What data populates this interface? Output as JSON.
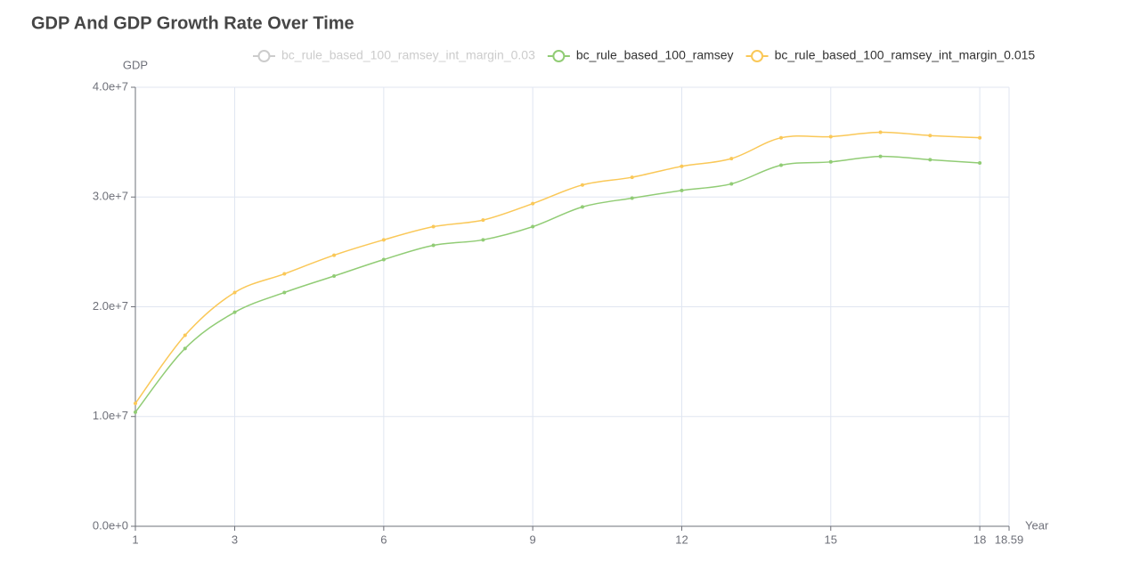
{
  "chart_data": {
    "type": "line",
    "title": "GDP And GDP Growth Rate Over Time",
    "x_label": "Year",
    "y_label": "GDP",
    "x": [
      1,
      2,
      3,
      4,
      5,
      6,
      7,
      8,
      9,
      10,
      11,
      12,
      13,
      14,
      15,
      16,
      17,
      18
    ],
    "series": [
      {
        "name": "bc_rule_based_100_ramsey_int_margin_0.03",
        "color": "#cccccc",
        "hidden": true
      },
      {
        "name": "bc_rule_based_100_ramsey",
        "color": "#91cc75",
        "values": [
          10400000,
          16200000,
          19500000,
          21300000,
          22800000,
          24300000,
          25600000,
          26100000,
          27300000,
          29100000,
          29900000,
          30600000,
          31200000,
          32900000,
          33200000,
          33700000,
          33400000,
          33100000
        ]
      },
      {
        "name": "bc_rule_based_100_ramsey_int_margin_0.015",
        "color": "#fac858",
        "values": [
          11200000,
          17400000,
          21300000,
          23000000,
          24700000,
          26100000,
          27300000,
          27900000,
          29400000,
          31100000,
          31800000,
          32800000,
          33500000,
          35400000,
          35500000,
          35900000,
          35600000,
          35400000
        ]
      }
    ],
    "xlim": [
      1,
      18.59
    ],
    "xticks": [
      1,
      3,
      6,
      9,
      12,
      15,
      18,
      18.59
    ],
    "ylim": [
      0,
      40000000
    ],
    "yticks": [
      {
        "value": 0,
        "label": "0.0e+0"
      },
      {
        "value": 10000000,
        "label": "1.0e+7"
      },
      {
        "value": 20000000,
        "label": "2.0e+7"
      },
      {
        "value": 30000000,
        "label": "3.0e+7"
      },
      {
        "value": 40000000,
        "label": "4.0e+7"
      }
    ],
    "grid": true,
    "smooth": true
  }
}
